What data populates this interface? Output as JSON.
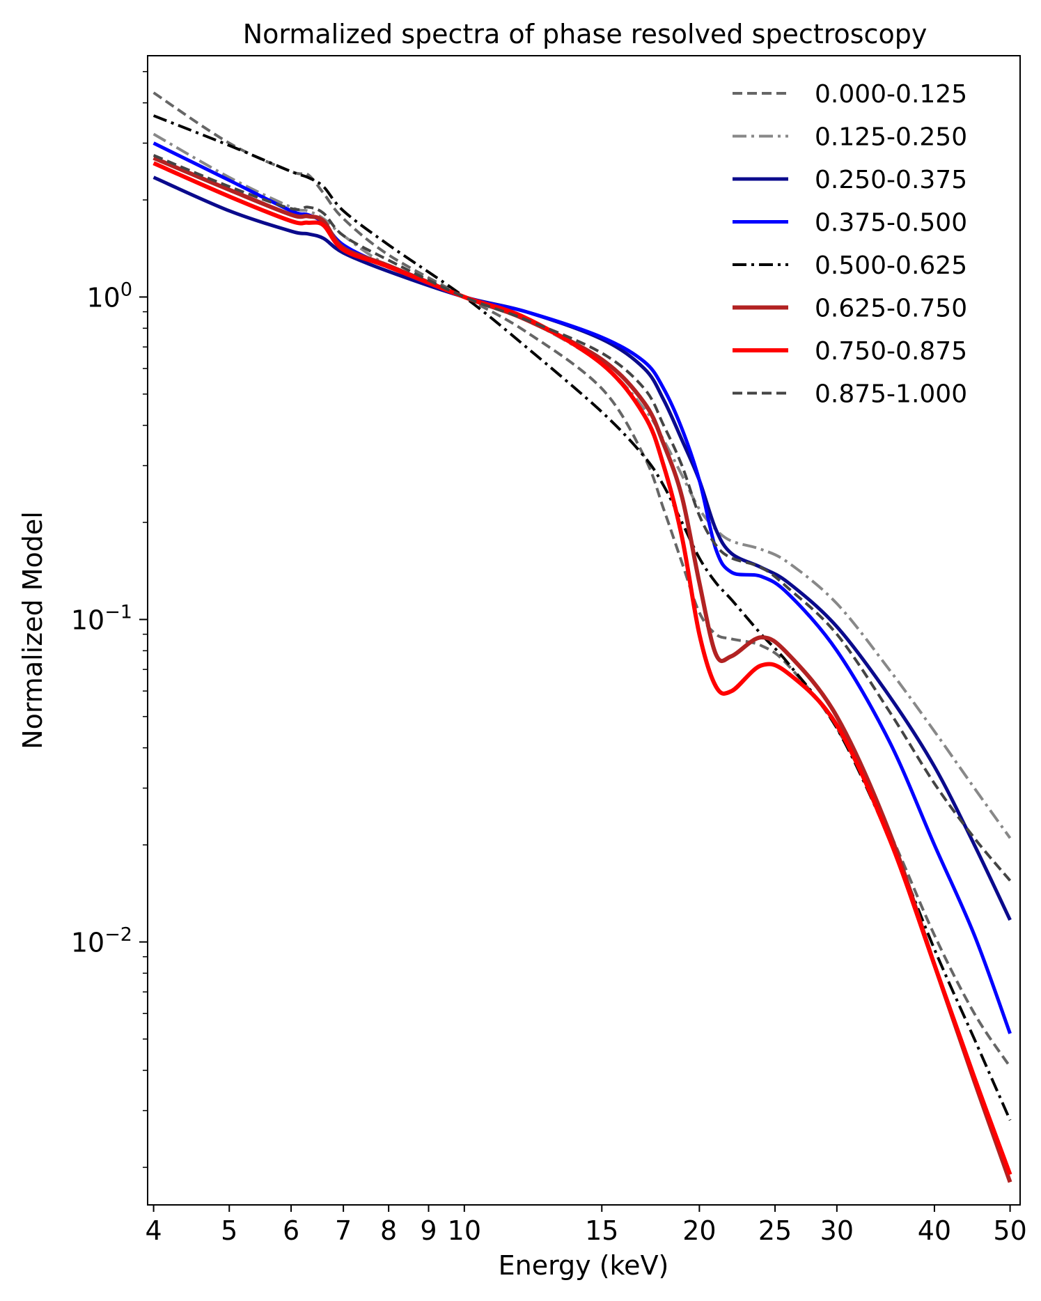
{
  "chart_data": {
    "type": "line",
    "title": "Normalized spectra of phase resolved spectroscopy",
    "xlabel": "Energy (keV)",
    "ylabel": "Normalized Model",
    "xscale": "log",
    "yscale": "log",
    "xlim": [
      3.93,
      51.5
    ],
    "ylim": [
      0.00153,
      5.6
    ],
    "xticks": [
      4,
      5,
      6,
      7,
      8,
      9,
      10,
      15,
      20,
      25,
      30,
      40,
      50
    ],
    "xtick_labels": [
      "4",
      "5",
      "6",
      "7",
      "8",
      "9",
      "10",
      "15",
      "20",
      "25",
      "30",
      "40",
      "50"
    ],
    "yticks": [
      {
        "value": 1,
        "base": "10",
        "exp": "0"
      },
      {
        "value": 0.1,
        "base": "10",
        "exp": "−1"
      },
      {
        "value": 0.01,
        "base": "10",
        "exp": "−2"
      }
    ],
    "legend_position": "top-right",
    "x": [
      4,
      5,
      6,
      6.3,
      6.6,
      7,
      8,
      10,
      12,
      15,
      17,
      18,
      19,
      20,
      21,
      22,
      24,
      26,
      30,
      35,
      40,
      45,
      50
    ],
    "series": [
      {
        "name": "0.000-0.125",
        "color": "#666666",
        "style": "dashed",
        "width": 4,
        "values": [
          4.3,
          3.0,
          2.45,
          2.4,
          2.1,
          1.75,
          1.35,
          1.0,
          0.78,
          0.52,
          0.32,
          0.22,
          0.15,
          0.105,
          0.09,
          0.087,
          0.083,
          0.072,
          0.046,
          0.022,
          0.0105,
          0.006,
          0.0041
        ]
      },
      {
        "name": "0.125-0.250",
        "color": "#888888",
        "style": "dashdot",
        "width": 4,
        "values": [
          3.2,
          2.35,
          1.9,
          1.85,
          1.75,
          1.55,
          1.25,
          1.0,
          0.85,
          0.62,
          0.45,
          0.36,
          0.28,
          0.22,
          0.19,
          0.175,
          0.165,
          0.15,
          0.112,
          0.07,
          0.045,
          0.03,
          0.021
        ]
      },
      {
        "name": "0.250-0.375",
        "color": "#0a0a8c",
        "style": "solid",
        "width": 5,
        "values": [
          2.35,
          1.85,
          1.6,
          1.57,
          1.52,
          1.37,
          1.2,
          1.0,
          0.9,
          0.74,
          0.6,
          0.48,
          0.36,
          0.27,
          0.19,
          0.16,
          0.145,
          0.13,
          0.095,
          0.058,
          0.035,
          0.02,
          0.0117
        ]
      },
      {
        "name": "0.375-0.500",
        "color": "#0000ff",
        "style": "solid",
        "width": 5,
        "values": [
          3.0,
          2.3,
          1.85,
          1.8,
          1.7,
          1.45,
          1.24,
          1.0,
          0.9,
          0.75,
          0.63,
          0.52,
          0.39,
          0.27,
          0.165,
          0.14,
          0.136,
          0.12,
          0.08,
          0.042,
          0.02,
          0.0105,
          0.0052
        ]
      },
      {
        "name": "0.500-0.625",
        "color": "#000000",
        "style": "dashdot",
        "width": 4,
        "values": [
          3.65,
          2.95,
          2.45,
          2.35,
          2.2,
          1.85,
          1.45,
          1.0,
          0.7,
          0.44,
          0.32,
          0.26,
          0.2,
          0.155,
          0.13,
          0.115,
          0.09,
          0.073,
          0.046,
          0.021,
          0.0095,
          0.005,
          0.0028
        ]
      },
      {
        "name": "0.625-0.750",
        "color": "#b22222",
        "style": "solid",
        "width": 6,
        "values": [
          2.7,
          2.15,
          1.8,
          1.78,
          1.72,
          1.42,
          1.25,
          1.0,
          0.85,
          0.64,
          0.47,
          0.35,
          0.24,
          0.13,
          0.078,
          0.077,
          0.088,
          0.078,
          0.05,
          0.022,
          0.0085,
          0.0037,
          0.0018
        ]
      },
      {
        "name": "0.750-0.875",
        "color": "#ff0000",
        "style": "solid",
        "width": 6,
        "values": [
          2.6,
          2.05,
          1.72,
          1.7,
          1.67,
          1.4,
          1.24,
          1.0,
          0.86,
          0.62,
          0.43,
          0.3,
          0.18,
          0.09,
          0.062,
          0.06,
          0.072,
          0.068,
          0.047,
          0.021,
          0.0085,
          0.0038,
          0.0019
        ]
      },
      {
        "name": "0.875-1.000",
        "color": "#444444",
        "style": "dashed",
        "width": 4,
        "values": [
          2.75,
          2.2,
          1.88,
          1.9,
          1.82,
          1.55,
          1.3,
          1.0,
          0.85,
          0.67,
          0.52,
          0.4,
          0.3,
          0.21,
          0.17,
          0.155,
          0.145,
          0.125,
          0.09,
          0.052,
          0.031,
          0.021,
          0.0155
        ]
      }
    ]
  }
}
